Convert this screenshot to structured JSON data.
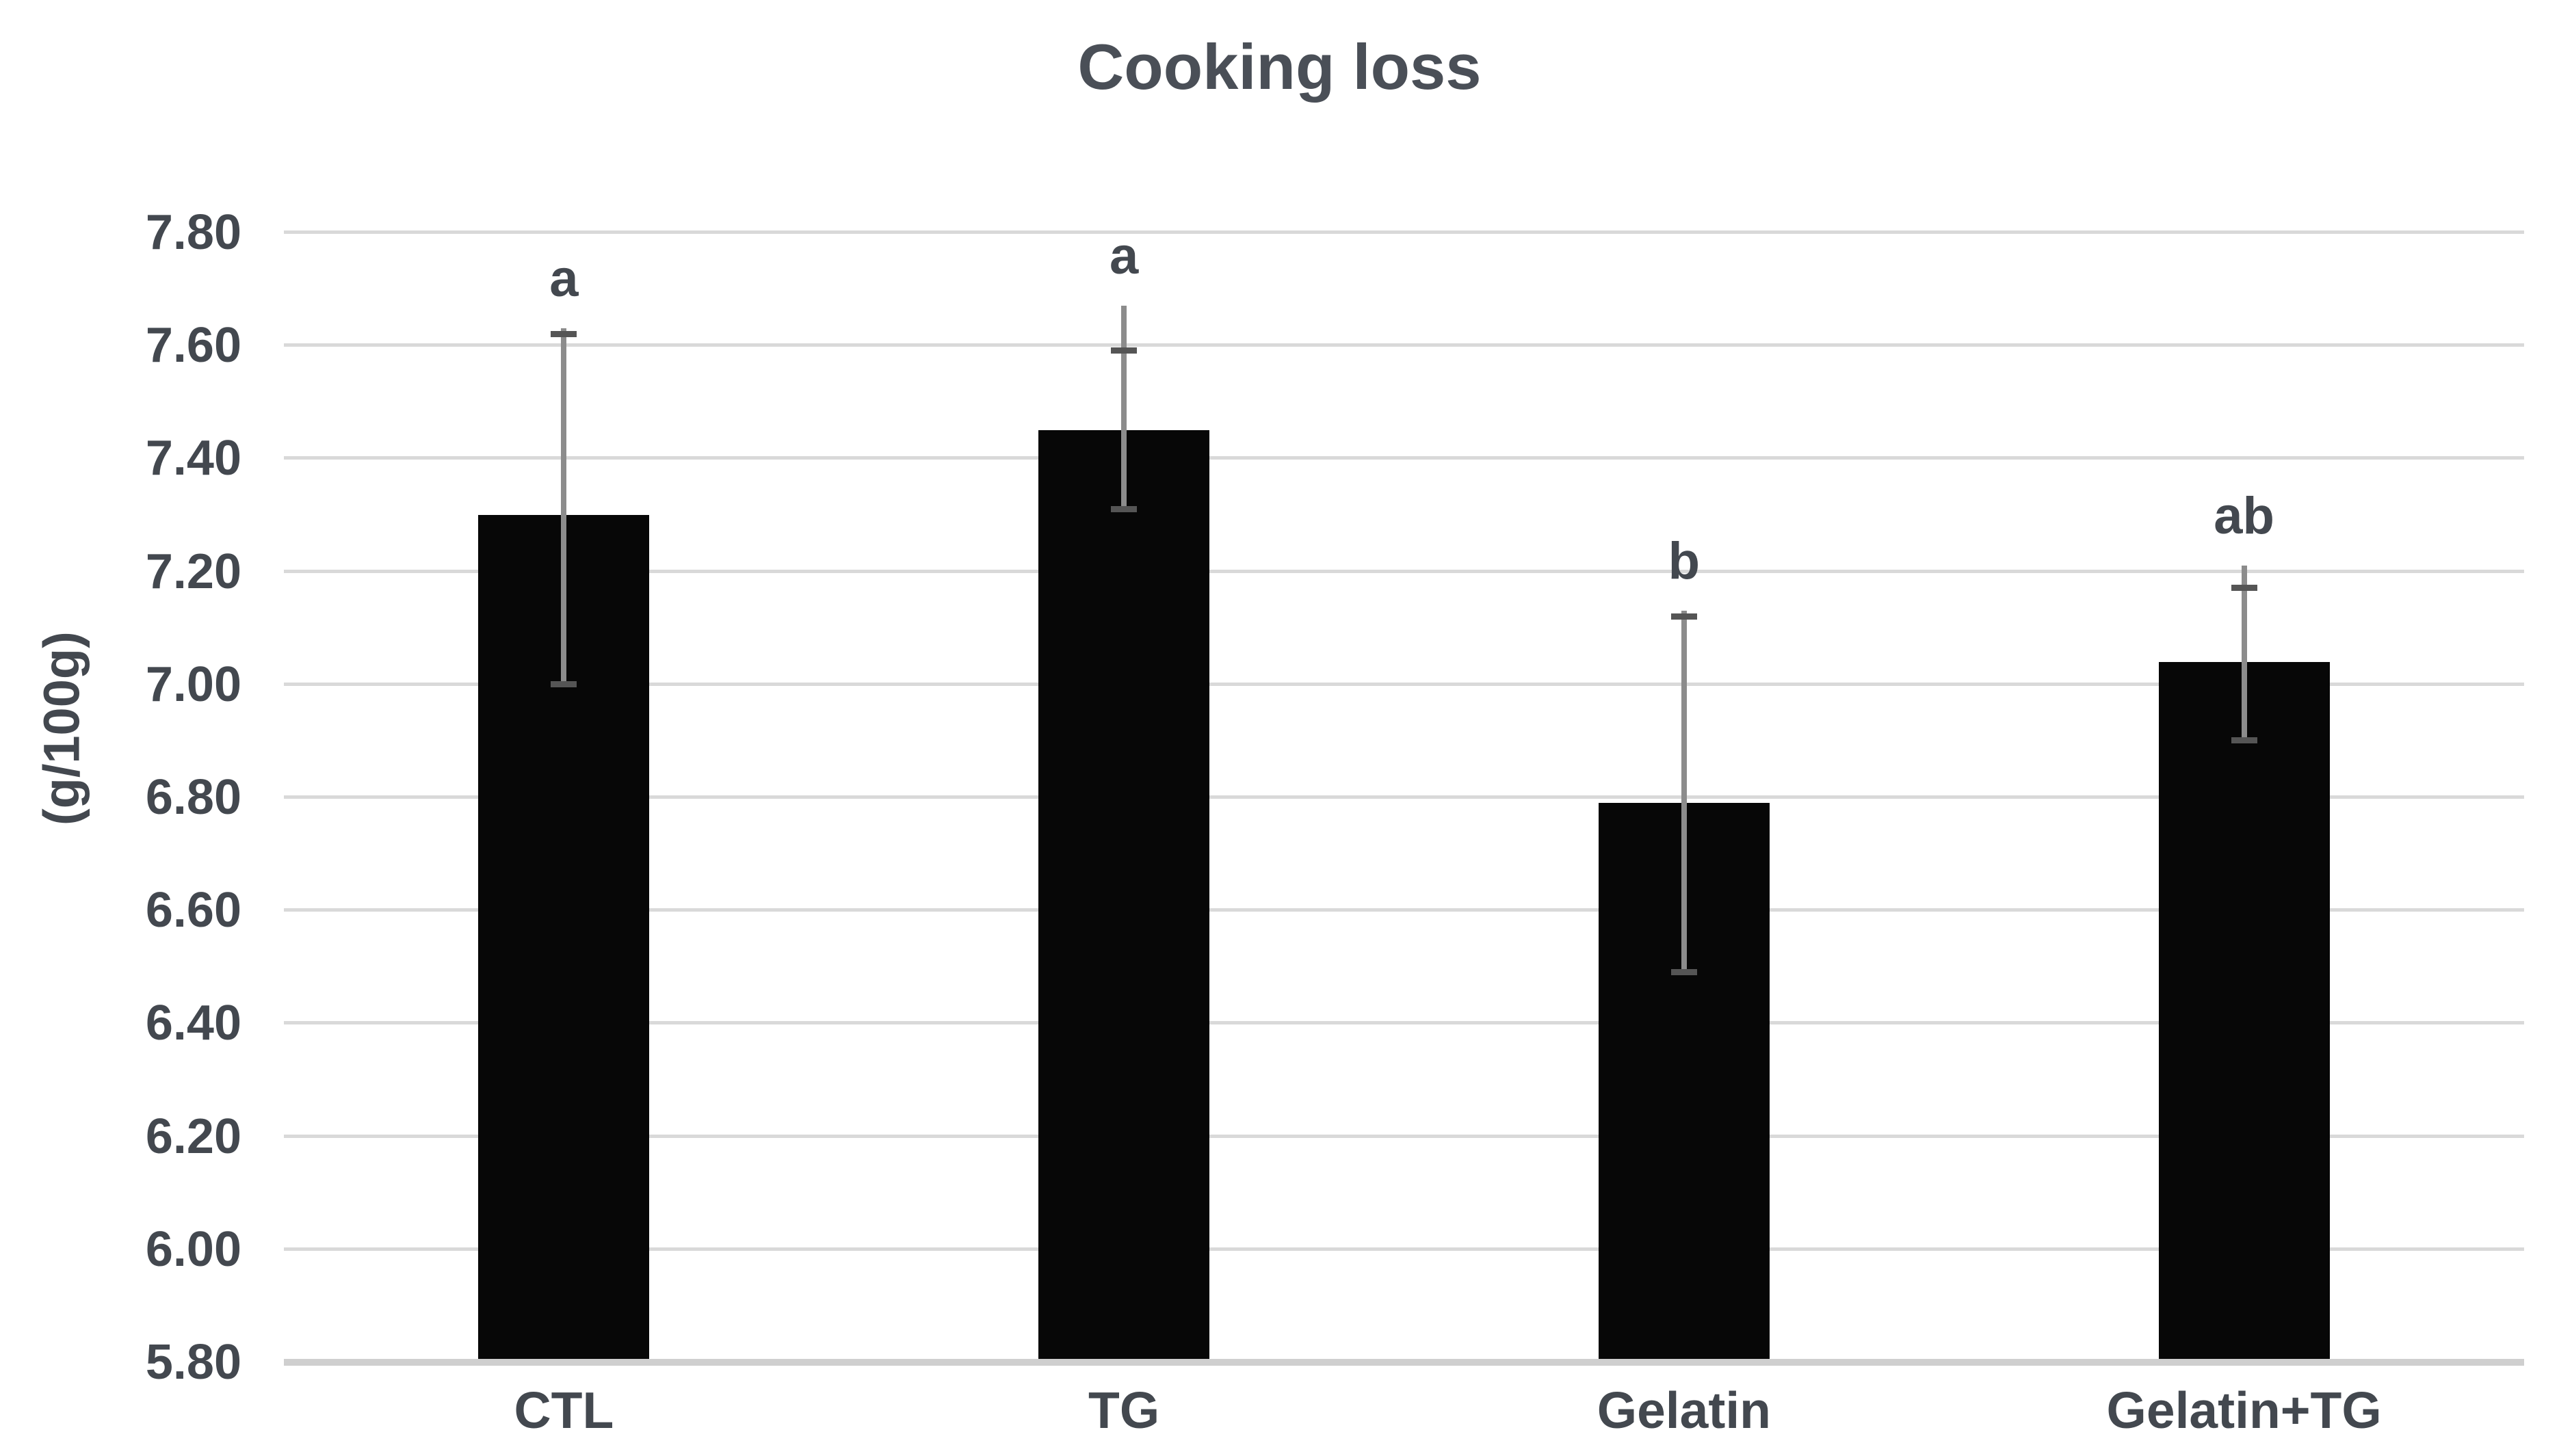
{
  "chart_data": {
    "type": "bar",
    "title": "Cooking loss",
    "xlabel": "",
    "ylabel": "(g/100g)",
    "categories": [
      "CTL",
      "TG",
      "Gelatin",
      "Gelatin+TG"
    ],
    "values": [
      7.3,
      7.45,
      6.79,
      7.04
    ],
    "error_bars": [
      {
        "low": 7.0,
        "high_cap": 7.62,
        "high_tip": 7.63
      },
      {
        "low": 7.31,
        "high_cap": 7.59,
        "high_tip": 7.67
      },
      {
        "low": 6.49,
        "high_cap": 7.12,
        "high_tip": 7.13
      },
      {
        "low": 6.9,
        "high_cap": 7.17,
        "high_tip": 7.21
      }
    ],
    "significance_letters": [
      "a",
      "a",
      "b",
      "ab"
    ],
    "y_ticks": [
      "7.80",
      "7.60",
      "7.40",
      "7.20",
      "7.00",
      "6.80",
      "6.60",
      "6.40",
      "6.20",
      "6.00",
      "5.80"
    ],
    "ylim": [
      5.8,
      7.8
    ],
    "grid": true,
    "legend": "none"
  },
  "colors": {
    "background": "#ffffff",
    "bar": "#070707",
    "text": "#43484f",
    "title_text": "#4a4f57",
    "gridline": "#d9d9d9",
    "axis_line": "#cfcfcf",
    "error_line": "#8c8c8c",
    "error_cap": "#555555"
  }
}
